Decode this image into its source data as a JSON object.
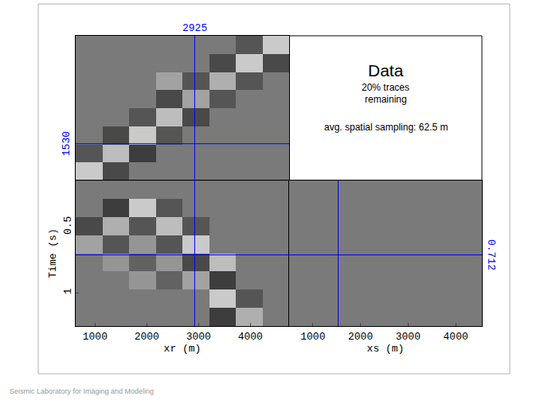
{
  "slide": {
    "title": "Data",
    "notes": [
      "20% traces",
      "remaining",
      "avg. spatial sampling: 62.5 m"
    ],
    "footer": "Seismic Laboratory for Imaging and Modeling"
  },
  "chart_data": [
    {
      "type": "heatmap",
      "tick_labels": false,
      "x": [
        883,
        1398,
        1914,
        2430,
        2945,
        3461,
        3977,
        4492
      ],
      "y": [
        753,
        1259,
        1766,
        2272,
        2778,
        3284,
        3791,
        4297
      ],
      "z": [
        [
          0.6,
          -0.4,
          0,
          0,
          0,
          0,
          0,
          0
        ],
        [
          -0.3,
          0.5,
          -0.5,
          0,
          0,
          0,
          0,
          0
        ],
        [
          0,
          -0.4,
          0.6,
          -0.3,
          0,
          0,
          0,
          0
        ],
        [
          0,
          0,
          -0.3,
          0.5,
          -0.4,
          0,
          0,
          0
        ],
        [
          0,
          0,
          0,
          -0.4,
          0.3,
          -0.3,
          0,
          0
        ],
        [
          0,
          0,
          0,
          0.3,
          -0.3,
          0.4,
          -0.3,
          0
        ],
        [
          0,
          0,
          0,
          0,
          0,
          -0.4,
          0.6,
          -0.4
        ],
        [
          0,
          0,
          0,
          0,
          0,
          0,
          -0.3,
          0.6
        ]
      ],
      "zlim": [
        -1,
        1
      ],
      "xlim": [
        625,
        4750
      ],
      "ylim": [
        500,
        4550
      ],
      "crosshair": {
        "x": 2925,
        "y": 1530
      },
      "color": "#0000ff"
    },
    {
      "type": "heatmap",
      "tick_labels": true,
      "xlabel": "xr (m)",
      "ylabel": "Time (s)",
      "x": [
        883,
        1398,
        1914,
        2430,
        2945,
        3461,
        3977,
        4492
      ],
      "y": [
        0.219,
        0.356,
        0.494,
        0.631,
        0.769,
        0.906,
        1.044,
        1.181
      ],
      "z": [
        [
          0,
          0,
          0,
          0,
          0,
          0,
          0,
          0
        ],
        [
          0,
          -0.5,
          0.6,
          -0.3,
          0,
          0,
          0,
          0
        ],
        [
          -0.4,
          0.4,
          -0.3,
          0.5,
          -0.3,
          0,
          0,
          0
        ],
        [
          0.3,
          -0.3,
          0.2,
          -0.3,
          0.6,
          0,
          0,
          0
        ],
        [
          0,
          0.2,
          -0.2,
          0.2,
          -0.4,
          0.5,
          0,
          0
        ],
        [
          0,
          0,
          0.2,
          -0.2,
          0.3,
          -0.5,
          0,
          0
        ],
        [
          0,
          0,
          0,
          0,
          0,
          0.6,
          -0.3,
          0
        ],
        [
          0,
          0,
          0,
          0,
          0,
          -0.5,
          0.4,
          0
        ]
      ],
      "zlim": [
        -1,
        1
      ],
      "xlim": [
        625,
        4750
      ],
      "ylim": [
        0.15,
        1.25
      ],
      "xticks": [
        1000,
        2000,
        3000,
        4000
      ],
      "yticks": [
        0.5,
        1
      ],
      "crosshair": {
        "x": 2925,
        "y": 0.712
      },
      "color": "#0000ff"
    },
    {
      "type": "heatmap",
      "tick_labels": "x",
      "xlabel": "xs (m)",
      "x": [
        1512,
        3537
      ],
      "y": [
        0.425,
        0.975
      ],
      "z": [
        [
          0,
          0
        ],
        [
          0,
          0
        ]
      ],
      "zlim": [
        -1,
        1
      ],
      "xlim": [
        500,
        4550
      ],
      "ylim": [
        0.15,
        1.25
      ],
      "xticks": [
        1000,
        2000,
        3000,
        4000
      ],
      "crosshair": {
        "x": 1530,
        "y": 0.712
      },
      "color": "#0000ff"
    }
  ]
}
